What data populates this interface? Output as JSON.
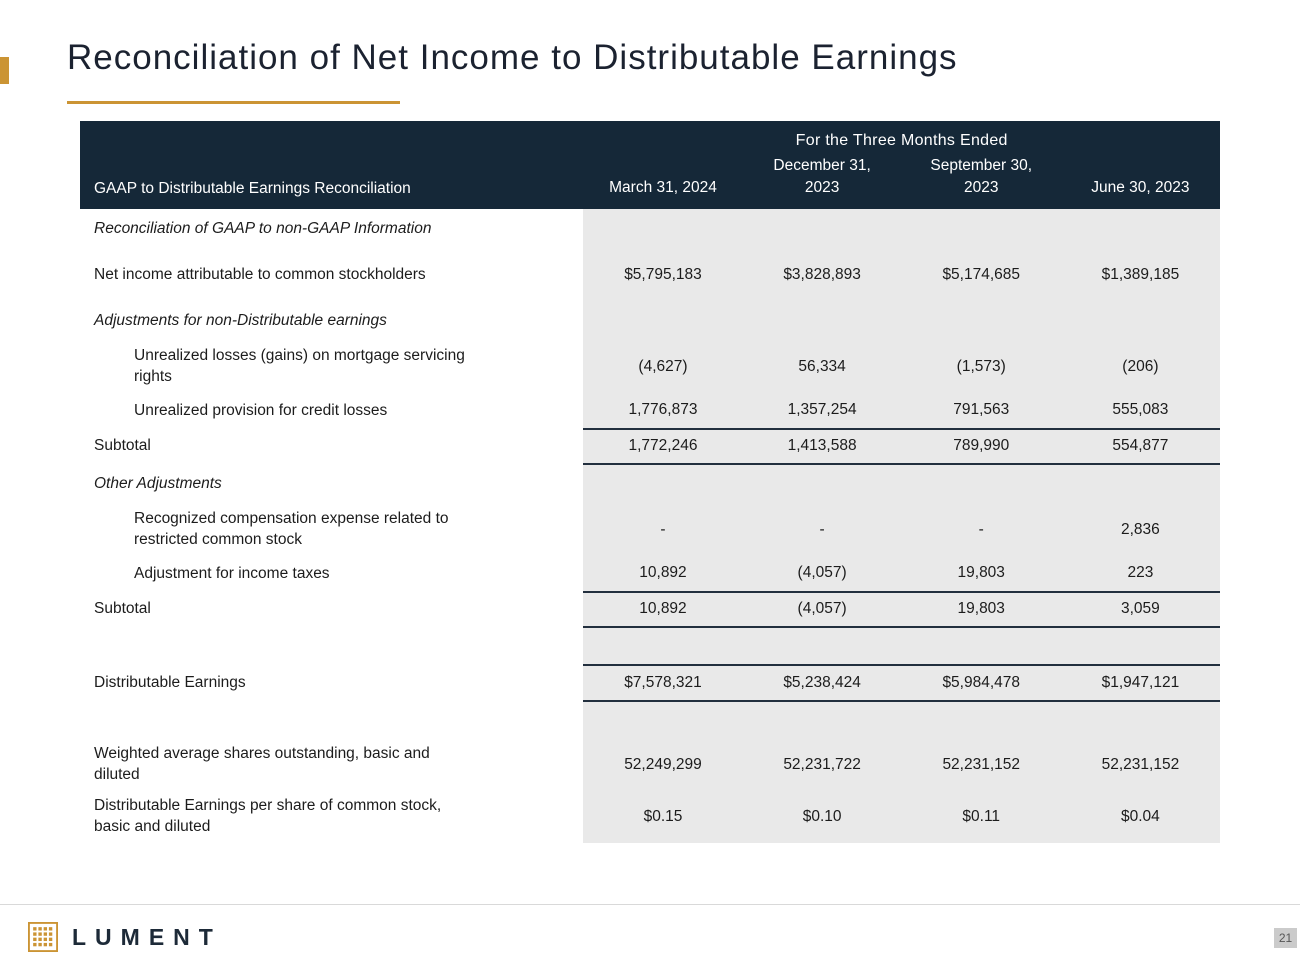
{
  "slide": {
    "title": "Reconciliation of Net Income to Distributable Earnings",
    "page_number": "21",
    "logo_text": "LUMENT"
  },
  "colors": {
    "header_bg": "#152838",
    "accent_gold": "#cb9434",
    "value_column_bg": "#e9e9e9",
    "rule_color": "#222f3e",
    "title_color": "#1b2230"
  },
  "table": {
    "group_header": "For the Three Months Ended",
    "label_header": "GAAP to Distributable Earnings Reconciliation",
    "period_headers": [
      "March 31, 2024",
      "December 31,\n2023",
      "September 30,\n2023",
      "June 30, 2023"
    ],
    "rows": [
      {
        "type": "section",
        "label": "Reconciliation of GAAP to non-GAAP Information",
        "values": [
          "",
          "",
          "",
          ""
        ]
      },
      {
        "type": "data",
        "label": "Net income attributable to common stockholders",
        "values": [
          "$5,795,183",
          "$3,828,893",
          "$5,174,685",
          "$1,389,185"
        ]
      },
      {
        "type": "section",
        "label": "Adjustments for non-Distributable earnings",
        "values": [
          "",
          "",
          "",
          ""
        ]
      },
      {
        "type": "indent",
        "label": "Unrealized losses (gains) on mortgage servicing\nrights",
        "values": [
          "(4,627)",
          "56,334",
          "(1,573)",
          "(206)"
        ]
      },
      {
        "type": "indent",
        "label": "Unrealized provision for credit losses",
        "values": [
          "1,776,873",
          "1,357,254",
          "791,563",
          "555,083"
        ]
      },
      {
        "type": "subtotal",
        "label": "Subtotal",
        "values": [
          "1,772,246",
          "1,413,588",
          "789,990",
          "554,877"
        ]
      },
      {
        "type": "section",
        "label": "Other Adjustments",
        "values": [
          "",
          "",
          "",
          ""
        ]
      },
      {
        "type": "indent",
        "label": "Recognized compensation expense related to\nrestricted common stock",
        "values": [
          "-",
          "-",
          "-",
          "2,836"
        ]
      },
      {
        "type": "indent",
        "label": "Adjustment for income taxes",
        "values": [
          "10,892",
          "(4,057)",
          "19,803",
          "223"
        ]
      },
      {
        "type": "subtotal",
        "label": "Subtotal",
        "values": [
          "10,892",
          "(4,057)",
          "19,803",
          "3,059"
        ]
      },
      {
        "type": "spacer",
        "label": "",
        "values": [
          "",
          "",
          "",
          ""
        ]
      },
      {
        "type": "total",
        "label": "Distributable Earnings",
        "values": [
          "$7,578,321",
          "$5,238,424",
          "$5,984,478",
          "$1,947,121"
        ]
      },
      {
        "type": "spacer",
        "label": "",
        "values": [
          "",
          "",
          "",
          ""
        ]
      },
      {
        "type": "data",
        "label": "Weighted average shares outstanding, basic and\ndiluted",
        "values": [
          "52,249,299",
          "52,231,722",
          "52,231,152",
          "52,231,152"
        ]
      },
      {
        "type": "data",
        "label": "Distributable Earnings per share of common stock,\nbasic and diluted",
        "values": [
          "$0.15",
          "$0.10",
          "$0.11",
          "$0.04"
        ]
      }
    ]
  }
}
